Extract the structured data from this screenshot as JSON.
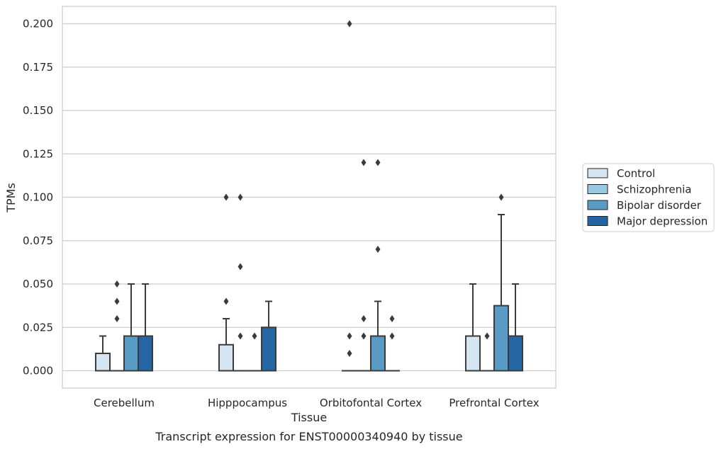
{
  "chart_data": {
    "type": "box",
    "caption": "Transcript expression for ENST00000340940 by tissue",
    "xlabel": "Tissue",
    "ylabel": "TPMs",
    "ylim": [
      -0.01,
      0.21
    ],
    "yticks": [
      0.0,
      0.025,
      0.05,
      0.075,
      0.1,
      0.125,
      0.15,
      0.175,
      0.2
    ],
    "ytick_labels": [
      "0.000",
      "0.025",
      "0.050",
      "0.075",
      "0.100",
      "0.125",
      "0.150",
      "0.175",
      "0.200"
    ],
    "grid": "horizontal",
    "legend_position": "right",
    "categories": [
      "Cerebellum",
      "Hipppocampus",
      "Orbitofontal Cortex",
      "Prefrontal Cortex"
    ],
    "series": [
      {
        "name": "Control",
        "color": "#d5e5f2",
        "boxes": [
          {
            "q1": 0.0,
            "median": 0.0,
            "q3": 0.01,
            "whisker_low": 0.0,
            "whisker_high": 0.02,
            "outliers": []
          },
          {
            "q1": 0.0,
            "median": 0.0,
            "q3": 0.015,
            "whisker_low": 0.0,
            "whisker_high": 0.03,
            "outliers": [
              0.04,
              0.1
            ]
          },
          {
            "q1": 0.0,
            "median": 0.0,
            "q3": 0.0,
            "whisker_low": 0.0,
            "whisker_high": 0.0,
            "outliers": [
              0.01,
              0.02,
              0.2
            ]
          },
          {
            "q1": 0.0,
            "median": 0.0,
            "q3": 0.02,
            "whisker_low": 0.0,
            "whisker_high": 0.05,
            "outliers": []
          }
        ]
      },
      {
        "name": "Schizophrenia",
        "color": "#9ac8e0",
        "boxes": [
          {
            "q1": 0.0,
            "median": 0.0,
            "q3": 0.0,
            "whisker_low": 0.0,
            "whisker_high": 0.0,
            "outliers": [
              0.03,
              0.04,
              0.05
            ]
          },
          {
            "q1": 0.0,
            "median": 0.0,
            "q3": 0.0,
            "whisker_low": 0.0,
            "whisker_high": 0.0,
            "outliers": [
              0.02,
              0.06,
              0.1
            ]
          },
          {
            "q1": 0.0,
            "median": 0.0,
            "q3": 0.0,
            "whisker_low": 0.0,
            "whisker_high": 0.0,
            "outliers": [
              0.02,
              0.03,
              0.12
            ]
          },
          {
            "q1": 0.0,
            "median": 0.0,
            "q3": 0.0,
            "whisker_low": 0.0,
            "whisker_high": 0.0,
            "outliers": [
              0.02
            ]
          }
        ]
      },
      {
        "name": "Bipolar disorder",
        "color": "#5a9bc6",
        "boxes": [
          {
            "q1": 0.0,
            "median": 0.0,
            "q3": 0.02,
            "whisker_low": 0.0,
            "whisker_high": 0.05,
            "outliers": []
          },
          {
            "q1": 0.0,
            "median": 0.0,
            "q3": 0.0,
            "whisker_low": 0.0,
            "whisker_high": 0.0,
            "outliers": [
              0.02
            ]
          },
          {
            "q1": 0.0,
            "median": 0.0,
            "q3": 0.02,
            "whisker_low": 0.0,
            "whisker_high": 0.04,
            "outliers": [
              0.07,
              0.12
            ]
          },
          {
            "q1": 0.0,
            "median": 0.0,
            "q3": 0.0375,
            "whisker_low": 0.0,
            "whisker_high": 0.09,
            "outliers": [
              0.1
            ]
          }
        ]
      },
      {
        "name": "Major depression",
        "color": "#2565a3",
        "boxes": [
          {
            "q1": 0.0,
            "median": 0.0,
            "q3": 0.02,
            "whisker_low": 0.0,
            "whisker_high": 0.05,
            "outliers": []
          },
          {
            "q1": 0.0,
            "median": 0.0,
            "q3": 0.025,
            "whisker_low": 0.0,
            "whisker_high": 0.04,
            "outliers": []
          },
          {
            "q1": 0.0,
            "median": 0.0,
            "q3": 0.0,
            "whisker_low": 0.0,
            "whisker_high": 0.0,
            "outliers": [
              0.02,
              0.03
            ]
          },
          {
            "q1": 0.0,
            "median": 0.0,
            "q3": 0.02,
            "whisker_low": 0.0,
            "whisker_high": 0.05,
            "outliers": []
          }
        ]
      }
    ],
    "colors": {
      "grid": "#cccccc",
      "frame": "#cccccc",
      "line": "#3b3b3b",
      "text": "#262626"
    }
  }
}
